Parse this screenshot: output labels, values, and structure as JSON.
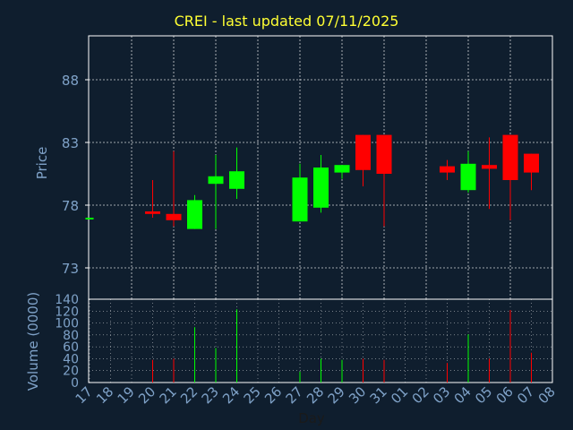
{
  "chart_data": [
    {
      "type": "candlestick",
      "title": "CREI - last updated 07/11/2025",
      "ylabel": "Price",
      "ylim": [
        70.5,
        91.5
      ],
      "yticks": [
        73,
        78,
        83,
        88
      ],
      "grid": true,
      "colors": {
        "up": "#00ff00",
        "down": "#ff0000",
        "axis": "#ffffff",
        "grid": "#ffffff",
        "label": "#7fa2c8",
        "title": "#ffff33"
      },
      "x": [
        "17",
        "18",
        "19",
        "20",
        "21",
        "22",
        "23",
        "24",
        "25",
        "26",
        "27",
        "28",
        "29",
        "30",
        "31",
        "01",
        "02",
        "03",
        "04",
        "05",
        "06",
        "07",
        "08"
      ],
      "candles": [
        {
          "x": "17",
          "open": 77.0,
          "close": 77.0,
          "high": 77.0,
          "low": 77.0,
          "dir": "up"
        },
        {
          "x": "20",
          "open": 77.5,
          "close": 77.3,
          "high": 80.0,
          "low": 77.0,
          "dir": "down"
        },
        {
          "x": "21",
          "open": 77.3,
          "close": 76.8,
          "high": 82.3,
          "low": 76.3,
          "dir": "down"
        },
        {
          "x": "22",
          "open": 76.1,
          "close": 78.4,
          "high": 78.8,
          "low": 76.1,
          "dir": "up"
        },
        {
          "x": "23",
          "open": 79.7,
          "close": 80.3,
          "high": 82.0,
          "low": 76.1,
          "dir": "up"
        },
        {
          "x": "24",
          "open": 79.3,
          "close": 80.7,
          "high": 82.6,
          "low": 78.5,
          "dir": "up"
        },
        {
          "x": "27",
          "open": 76.7,
          "close": 80.2,
          "high": 81.3,
          "low": 76.7,
          "dir": "up"
        },
        {
          "x": "28",
          "open": 77.8,
          "close": 81.0,
          "high": 82.0,
          "low": 77.4,
          "dir": "up"
        },
        {
          "x": "29",
          "open": 80.6,
          "close": 81.2,
          "high": 81.2,
          "low": 80.1,
          "dir": "up"
        },
        {
          "x": "30",
          "open": 83.6,
          "close": 80.8,
          "high": 83.6,
          "low": 79.5,
          "dir": "down"
        },
        {
          "x": "31",
          "open": 83.6,
          "close": 80.5,
          "high": 83.6,
          "low": 76.3,
          "dir": "down"
        },
        {
          "x": "03",
          "open": 81.1,
          "close": 80.6,
          "high": 81.6,
          "low": 80.0,
          "dir": "down"
        },
        {
          "x": "04",
          "open": 79.2,
          "close": 81.3,
          "high": 82.3,
          "low": 79.0,
          "dir": "up"
        },
        {
          "x": "05",
          "open": 81.2,
          "close": 80.9,
          "high": 83.4,
          "low": 77.7,
          "dir": "down"
        },
        {
          "x": "06",
          "open": 83.6,
          "close": 80.0,
          "high": 83.6,
          "low": 76.8,
          "dir": "down"
        },
        {
          "x": "07",
          "open": 82.1,
          "close": 80.6,
          "high": 82.1,
          "low": 79.2,
          "dir": "down"
        }
      ]
    },
    {
      "type": "bar",
      "xlabel": "Day",
      "ylabel": "Volume (0000)",
      "ylim": [
        0,
        140
      ],
      "yticks": [
        0,
        20,
        40,
        60,
        80,
        100,
        120,
        140
      ],
      "grid": true,
      "categories": [
        "17",
        "18",
        "19",
        "20",
        "21",
        "22",
        "23",
        "24",
        "25",
        "26",
        "27",
        "28",
        "29",
        "30",
        "31",
        "01",
        "02",
        "03",
        "04",
        "05",
        "06",
        "07",
        "08"
      ],
      "bars": [
        {
          "x": "17",
          "value": 0,
          "dir": "up"
        },
        {
          "x": "20",
          "value": 38,
          "dir": "down"
        },
        {
          "x": "21",
          "value": 40,
          "dir": "down"
        },
        {
          "x": "22",
          "value": 93,
          "dir": "up"
        },
        {
          "x": "23",
          "value": 58,
          "dir": "up"
        },
        {
          "x": "24",
          "value": 123,
          "dir": "up"
        },
        {
          "x": "27",
          "value": 18,
          "dir": "up"
        },
        {
          "x": "28",
          "value": 40,
          "dir": "up"
        },
        {
          "x": "29",
          "value": 38,
          "dir": "up"
        },
        {
          "x": "30",
          "value": 40,
          "dir": "down"
        },
        {
          "x": "31",
          "value": 38,
          "dir": "down"
        },
        {
          "x": "03",
          "value": 33,
          "dir": "down"
        },
        {
          "x": "04",
          "value": 81,
          "dir": "up"
        },
        {
          "x": "05",
          "value": 40,
          "dir": "down"
        },
        {
          "x": "06",
          "value": 122,
          "dir": "down"
        },
        {
          "x": "07",
          "value": 50,
          "dir": "down"
        }
      ]
    }
  ]
}
